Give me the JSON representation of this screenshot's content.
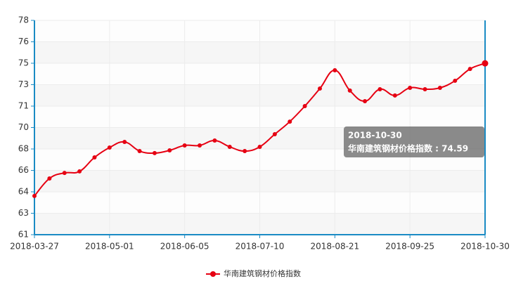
{
  "chart_data": {
    "type": "line",
    "categories": [
      "2018-03-27",
      null,
      null,
      null,
      null,
      "2018-05-01",
      null,
      null,
      null,
      null,
      "2018-06-05",
      null,
      null,
      null,
      null,
      "2018-07-10",
      null,
      null,
      null,
      null,
      "2018-08-21",
      null,
      null,
      null,
      null,
      "2018-09-25",
      null,
      null,
      null,
      null,
      "2018-10-30"
    ],
    "series": [
      {
        "name": "华南建筑钢材价格指数",
        "color": "#e60012",
        "values": [
          64.07,
          65.46,
          65.9,
          66.02,
          67.13,
          67.91,
          68.36,
          67.63,
          67.47,
          67.69,
          68.08,
          68.08,
          68.47,
          67.97,
          67.63,
          67.97,
          68.97,
          69.97,
          71.2,
          72.59,
          74.04,
          72.43,
          71.59,
          72.54,
          72.04,
          72.65,
          72.54,
          72.65,
          73.21,
          74.15,
          74.59
        ]
      }
    ],
    "ylim": [
      61,
      78
    ],
    "yticks": [
      61,
      {
        "value": 62.7,
        "label": "63"
      },
      {
        "value": 64.4,
        "label": "64"
      },
      {
        "value": 66.1,
        "label": "66"
      },
      {
        "value": 67.8,
        "label": "68"
      },
      {
        "value": 69.5,
        "label": "70"
      },
      {
        "value": 71.2,
        "label": "71"
      },
      {
        "value": 72.9,
        "label": "73"
      },
      {
        "value": 74.6,
        "label": "75"
      },
      {
        "value": 76.3,
        "label": "76"
      },
      78
    ],
    "grid": true,
    "legend": "bottom",
    "tooltip": {
      "title": "2018-10-30",
      "text": "华南建筑钢材价格指数 : 74.59"
    }
  }
}
